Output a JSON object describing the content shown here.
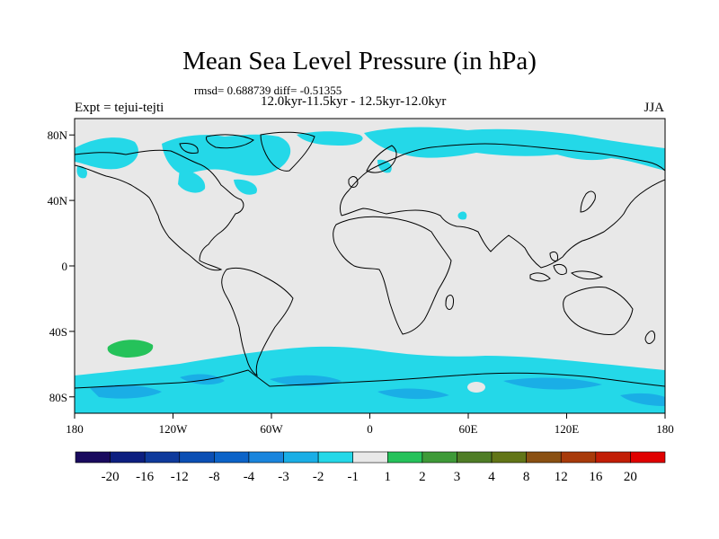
{
  "title": "Mean Sea Level Pressure (in hPa)",
  "stats": "rmsd= 0.688739 diff= -0.51355",
  "period": "12.0kyr-11.5kyr - 12.5kyr-12.0kyr",
  "experiment": "Expt = tejui-tejti",
  "season": "JJA",
  "map": {
    "background_color": "#e8e8e8",
    "projection": "cylindrical-equidistant",
    "lon_range": [
      -180,
      180
    ],
    "lat_range": [
      -90,
      90
    ]
  },
  "lat_ticks": [
    {
      "lat": 80,
      "label": "80N"
    },
    {
      "lat": 40,
      "label": "40N"
    },
    {
      "lat": 0,
      "label": "0"
    },
    {
      "lat": -40,
      "label": "40S"
    },
    {
      "lat": -80,
      "label": "80S"
    }
  ],
  "lon_ticks": [
    {
      "lon": -180,
      "label": "180"
    },
    {
      "lon": -120,
      "label": "120W"
    },
    {
      "lon": -60,
      "label": "60W"
    },
    {
      "lon": 0,
      "label": "0"
    },
    {
      "lon": 60,
      "label": "60E"
    },
    {
      "lon": 120,
      "label": "120E"
    },
    {
      "lon": 180,
      "label": "180"
    }
  ],
  "colorbar": {
    "colors": [
      "#1a0a5e",
      "#0d1f80",
      "#0f3a9c",
      "#0b4fb4",
      "#0c63c8",
      "#1a85dd",
      "#1aaee6",
      "#24d8e8",
      "#e8e8e8",
      "#25c25a",
      "#3e9a38",
      "#4f7d26",
      "#627517",
      "#8a5012",
      "#a83a0a",
      "#c21e06",
      "#e00000"
    ],
    "labels": [
      "-20",
      "-16",
      "-12",
      "-8",
      "-4",
      "-3",
      "-2",
      "-1",
      "1",
      "2",
      "3",
      "4",
      "8",
      "12",
      "16",
      "20"
    ]
  },
  "anomalies": [
    {
      "color": "#24d8e8",
      "label": "-2 to -1",
      "region": "arctic-north-america"
    },
    {
      "color": "#24d8e8",
      "label": "-2 to -1",
      "region": "northern-eurasia"
    },
    {
      "color": "#24d8e8",
      "label": "-2 to -1",
      "region": "southern-ocean"
    },
    {
      "color": "#1aaee6",
      "label": "-3 to -2",
      "region": "antarctica"
    },
    {
      "color": "#25c25a",
      "label": "1 to 2",
      "region": "south-pacific"
    }
  ]
}
